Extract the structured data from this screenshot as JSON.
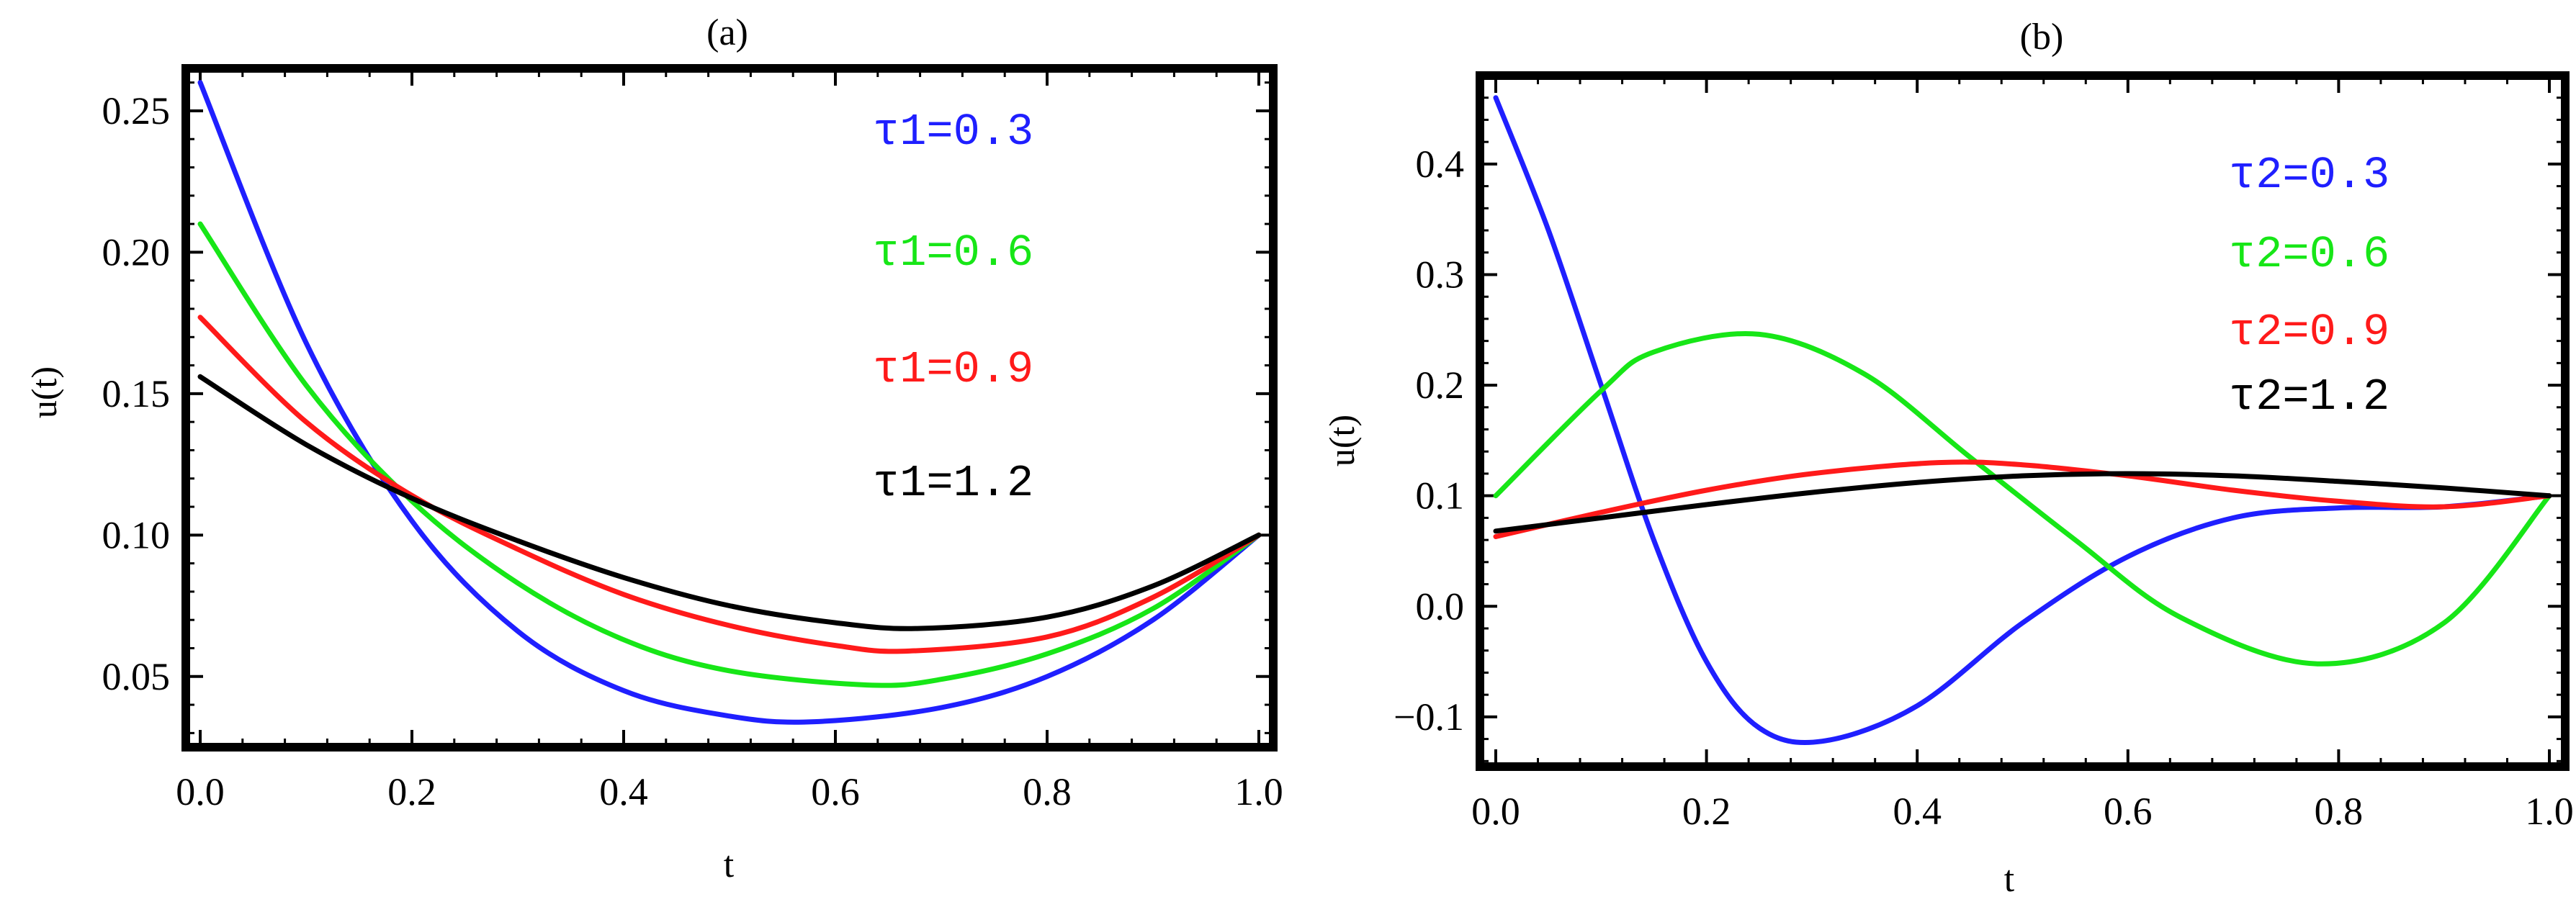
{
  "chart_data": [
    {
      "type": "line",
      "title": "(a)",
      "xlabel": "t",
      "ylabel": "u(t)",
      "xlim": [
        0.0,
        1.0
      ],
      "ylim": [
        0.025,
        0.265
      ],
      "xticks": [
        0.0,
        0.2,
        0.4,
        0.6,
        0.8,
        1.0
      ],
      "xtick_labels": [
        "0.0",
        "0.2",
        "0.4",
        "0.6",
        "0.8",
        "1.0"
      ],
      "yticks": [
        0.05,
        0.1,
        0.15,
        0.2,
        0.25
      ],
      "ytick_labels": [
        "0.05",
        "0.10",
        "0.15",
        "0.20",
        "0.25"
      ],
      "series": [
        {
          "name": "τ1=0.3",
          "color": "#1f1fff",
          "x": [
            0.0,
            0.1,
            0.2,
            0.3,
            0.4,
            0.5,
            0.58,
            0.7,
            0.8,
            0.9,
            1.0
          ],
          "values": [
            0.26,
            0.168,
            0.105,
            0.066,
            0.045,
            0.036,
            0.034,
            0.039,
            0.05,
            0.07,
            0.1
          ]
        },
        {
          "name": "τ1=0.6",
          "color": "#17e617",
          "x": [
            0.0,
            0.1,
            0.2,
            0.3,
            0.4,
            0.5,
            0.63,
            0.7,
            0.8,
            0.9,
            1.0
          ],
          "values": [
            0.21,
            0.153,
            0.112,
            0.083,
            0.063,
            0.052,
            0.047,
            0.049,
            0.058,
            0.074,
            0.1
          ]
        },
        {
          "name": "τ1=0.9",
          "color": "#ff1a1a",
          "x": [
            0.0,
            0.1,
            0.2,
            0.3,
            0.4,
            0.5,
            0.6,
            0.67,
            0.8,
            0.9,
            1.0
          ],
          "values": [
            0.177,
            0.14,
            0.114,
            0.095,
            0.079,
            0.068,
            0.061,
            0.059,
            0.064,
            0.078,
            0.1
          ]
        },
        {
          "name": "τ1=1.2",
          "color": "#000000",
          "x": [
            0.0,
            0.1,
            0.2,
            0.3,
            0.4,
            0.5,
            0.6,
            0.68,
            0.8,
            0.9,
            1.0
          ],
          "values": [
            0.156,
            0.132,
            0.113,
            0.098,
            0.085,
            0.075,
            0.069,
            0.067,
            0.071,
            0.082,
            0.1
          ]
        }
      ]
    },
    {
      "type": "line",
      "title": "(b)",
      "xlabel": "t",
      "ylabel": "u(t)",
      "xlim": [
        0.0,
        1.0
      ],
      "ylim": [
        -0.145,
        0.48
      ],
      "xticks": [
        0.0,
        0.2,
        0.4,
        0.6,
        0.8,
        1.0
      ],
      "xtick_labels": [
        "0.0",
        "0.2",
        "0.4",
        "0.6",
        "0.8",
        "1.0"
      ],
      "yticks": [
        -0.1,
        0.0,
        0.1,
        0.2,
        0.3,
        0.4
      ],
      "ytick_labels": [
        "−0.1",
        "0.0",
        "0.1",
        "0.2",
        "0.3",
        "0.4"
      ],
      "series": [
        {
          "name": "τ2=0.3",
          "color": "#1f1fff",
          "x": [
            0.0,
            0.05,
            0.1,
            0.15,
            0.2,
            0.25,
            0.31,
            0.4,
            0.5,
            0.6,
            0.7,
            0.8,
            0.9,
            1.0
          ],
          "values": [
            0.46,
            0.34,
            0.2,
            0.06,
            -0.05,
            -0.11,
            -0.122,
            -0.09,
            -0.015,
            0.045,
            0.08,
            0.089,
            0.09,
            0.1
          ]
        },
        {
          "name": "τ2=0.6",
          "color": "#17e617",
          "x": [
            0.0,
            0.1,
            0.15,
            0.25,
            0.35,
            0.45,
            0.55,
            0.65,
            0.78,
            0.9,
            1.0
          ],
          "values": [
            0.1,
            0.195,
            0.23,
            0.246,
            0.21,
            0.135,
            0.06,
            -0.01,
            -0.052,
            -0.015,
            0.1
          ]
        },
        {
          "name": "τ2=0.9",
          "color": "#ff1a1a",
          "x": [
            0.0,
            0.1,
            0.2,
            0.3,
            0.42,
            0.5,
            0.6,
            0.7,
            0.8,
            0.9,
            1.0
          ],
          "values": [
            0.063,
            0.085,
            0.105,
            0.12,
            0.13,
            0.128,
            0.118,
            0.105,
            0.095,
            0.09,
            0.1
          ]
        },
        {
          "name": "τ2=1.2",
          "color": "#000000",
          "x": [
            0.0,
            0.1,
            0.2,
            0.3,
            0.4,
            0.5,
            0.6,
            0.7,
            0.8,
            0.9,
            1.0
          ],
          "values": [
            0.068,
            0.08,
            0.092,
            0.103,
            0.112,
            0.118,
            0.12,
            0.118,
            0.113,
            0.107,
            0.1
          ]
        }
      ]
    }
  ]
}
